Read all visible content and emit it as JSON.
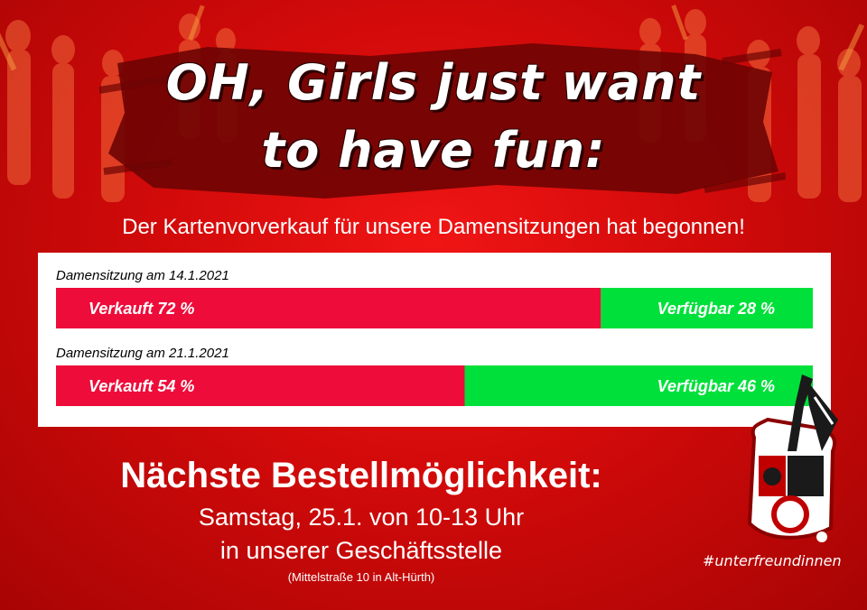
{
  "poster": {
    "title_line1": "OH, Girls just want",
    "title_line2": "to have fun:",
    "subtitle": "Der Kartenvorverkauf für unsere Damensitzungen hat begonnen!",
    "headline": "Nächste Bestellmöglichkeit:",
    "line2": "Samstag, 25.1. von 10-13 Uhr",
    "line3": "in unserer Geschäftsstelle",
    "address": "(Mittelstraße 10 in Alt-Hürth)",
    "hashtag": "#unterfreundinnen"
  },
  "colors": {
    "sold": "#ed0c3a",
    "available": "#00e03a",
    "background": "#d20a0a"
  },
  "chart_data": {
    "type": "bar",
    "orientation": "horizontal-stacked",
    "series_names": [
      "Verkauft",
      "Verfügbar"
    ],
    "groups": [
      {
        "label": "Damensitzung am 14.1.2021",
        "sold": 72,
        "available": 28,
        "sold_label": "Verkauft 72 %",
        "available_label": "Verfügbar 28 %"
      },
      {
        "label": "Damensitzung am 21.1.2021",
        "sold": 54,
        "available": 46,
        "sold_label": "Verkauft  54 %",
        "available_label": "Verfügbar 46 %"
      }
    ],
    "unit": "%"
  }
}
